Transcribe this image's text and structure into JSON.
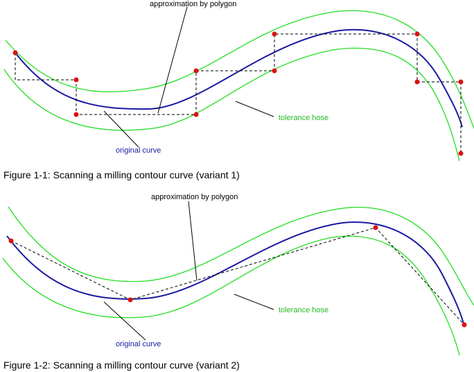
{
  "figure1": {
    "label_polygon": "approximation by polygon",
    "label_tolerance": "tolerance hose",
    "label_curve": "original curve",
    "caption": "Figure 1-1: Scanning a milling contour curve (variant 1)"
  },
  "figure2": {
    "label_polygon": "approximation by polygon",
    "label_tolerance": "tolerance hose",
    "label_curve": "original curve",
    "caption": "Figure 1-2: Scanning a milling contour curve (variant 2)"
  },
  "colors": {
    "curve": "#1a1aa0",
    "hose": "#22dd22",
    "point": "#dd1111",
    "polygon": "#000000",
    "tolerance_text": "#22bb22",
    "curve_text": "#1a1aa0"
  }
}
